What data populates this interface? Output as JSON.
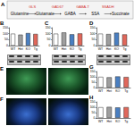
{
  "diagram": {
    "label": "A",
    "nodes": [
      "Glutamine",
      "Glutamate",
      "GABA",
      "SSA",
      "Succinate"
    ],
    "edges": [
      "GLS",
      "GAD67",
      "GABA-T",
      "SSADH"
    ]
  },
  "images": {
    "rows": [
      {
        "label": "E"
      },
      {
        "label": "F"
      }
    ]
  },
  "chart_data": [
    {
      "type": "bar",
      "title": "B",
      "categories": [
        "WT",
        "Het",
        "KO",
        "Tg"
      ],
      "values": [
        100,
        92,
        105,
        98
      ],
      "colors": [
        "#ffffff",
        "#9e9e9e",
        "#4a7fc1",
        "#e0675a"
      ],
      "ylim": [
        0,
        150
      ],
      "yticks": [
        0,
        50,
        100,
        150
      ]
    },
    {
      "type": "bar",
      "title": "C",
      "categories": [
        "WT",
        "Het",
        "KO",
        "Tg"
      ],
      "values": [
        100,
        110,
        95,
        102
      ],
      "colors": [
        "#ffffff",
        "#9e9e9e",
        "#4a7fc1",
        "#e0675a"
      ],
      "ylim": [
        0,
        150
      ],
      "yticks": [
        0,
        50,
        100,
        150
      ]
    },
    {
      "type": "bar",
      "title": "D",
      "categories": [
        "WT",
        "Het",
        "KO",
        "Tg"
      ],
      "values": [
        100,
        97,
        108,
        94
      ],
      "colors": [
        "#ffffff",
        "#9e9e9e",
        "#4a7fc1",
        "#e0675a"
      ],
      "ylim": [
        0,
        150
      ],
      "yticks": [
        0,
        50,
        100,
        150
      ]
    },
    {
      "type": "bar",
      "title": "G",
      "categories": [
        "WT",
        "Het",
        "KO",
        "Tg"
      ],
      "values": [
        100,
        96,
        104,
        99
      ],
      "colors": [
        "#ffffff",
        "#9e9e9e",
        "#4a7fc1",
        "#e0675a"
      ],
      "ylim": [
        0,
        150
      ],
      "yticks": [
        0,
        50,
        100,
        150
      ]
    },
    {
      "type": "bar",
      "title": "H",
      "categories": [
        "WT",
        "Het",
        "KO",
        "Tg"
      ],
      "values": [
        100,
        103,
        98,
        101
      ],
      "colors": [
        "#ffffff",
        "#9e9e9e",
        "#4a7fc1",
        "#e0675a"
      ],
      "ylim": [
        0,
        150
      ],
      "yticks": [
        0,
        50,
        100,
        150
      ]
    }
  ]
}
